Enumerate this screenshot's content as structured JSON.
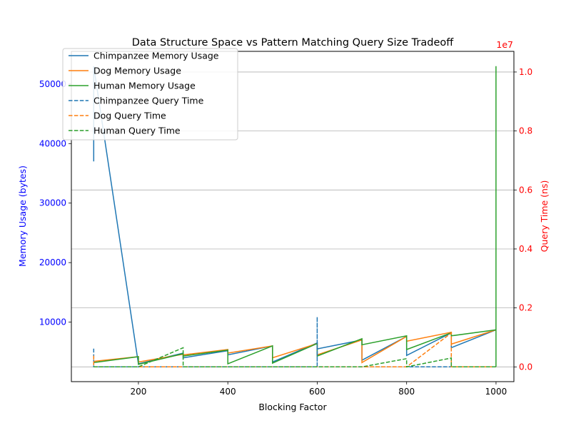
{
  "chart_data": {
    "type": "line",
    "title": "Data Structure Space vs Pattern Matching Query Size Tradeoff",
    "xlabel": "Blocking Factor",
    "ylabel_left": "Memory Usage (bytes)",
    "ylabel_right": "Query Time (ns)",
    "right_axis_offset_label": "1e7",
    "xlim": [
      50,
      1040
    ],
    "ylim_left": [
      0,
      55500
    ],
    "ylim_right": [
      -0.05,
      1.07
    ],
    "right_axis_scale": 10000000,
    "grid": "horizontal lines at right-axis ticks",
    "legend_position": "top-left",
    "x_ticks": [
      200,
      400,
      600,
      800,
      1000
    ],
    "x_tick_labels": [
      "200",
      "400",
      "600",
      "800",
      "1000"
    ],
    "y_left_ticks": [
      10000,
      20000,
      30000,
      40000,
      50000
    ],
    "y_left_tick_labels": [
      "10000",
      "20000",
      "30000",
      "40000",
      "50000"
    ],
    "y_right_ticks": [
      0.0,
      0.2,
      0.4,
      0.6,
      0.8,
      1.0
    ],
    "y_right_tick_labels": [
      "0.0",
      "0.2",
      "0.4",
      "0.6",
      "0.8",
      "1.0"
    ],
    "colors": {
      "chimpanzee": "#1f77b4",
      "dog": "#ff7f0e",
      "human": "#2ca02c",
      "left_axis": "#0000ff",
      "right_axis": "#ff0000"
    },
    "series": [
      {
        "name": "Chimpanzee Memory Usage",
        "axis": "left",
        "style": "solid",
        "color": "#1f77b4",
        "x": [
          100,
          100,
          100,
          200,
          200,
          300,
          300,
          400,
          400,
          500,
          500,
          600,
          600,
          700,
          700,
          800,
          800,
          900,
          900,
          1000
        ],
        "y": [
          37000,
          53000,
          53000,
          3000,
          3000,
          4800,
          4000,
          5200,
          4500,
          6000,
          3300,
          6500,
          5500,
          7000,
          3600,
          7600,
          4400,
          8200,
          5700,
          8700
        ]
      },
      {
        "name": "Dog Memory Usage",
        "axis": "left",
        "style": "solid",
        "color": "#ff7f0e",
        "x": [
          100,
          100,
          200,
          200,
          300,
          300,
          400,
          400,
          500,
          500,
          600,
          600,
          700,
          700,
          800,
          800,
          900,
          900,
          1000,
          1000
        ],
        "y": [
          3300,
          3400,
          4200,
          3300,
          4600,
          4500,
          5400,
          4800,
          6000,
          4000,
          6400,
          4500,
          7000,
          3200,
          7600,
          6800,
          8300,
          6300,
          8700,
          8700
        ]
      },
      {
        "name": "Human Memory Usage",
        "axis": "left",
        "style": "solid",
        "color": "#2ca02c",
        "x": [
          100,
          100,
          200,
          200,
          300,
          300,
          400,
          400,
          500,
          500,
          600,
          600,
          700,
          700,
          800,
          800,
          900,
          900,
          1000,
          1000
        ],
        "y": [
          3100,
          3200,
          4200,
          2900,
          4700,
          4300,
          5300,
          3000,
          6000,
          3100,
          6400,
          4300,
          7200,
          6200,
          7700,
          5400,
          8200,
          7700,
          8700,
          8700
        ]
      },
      {
        "name": "Chimpanzee Query Time",
        "axis": "right",
        "style": "dashed",
        "color": "#1f77b4",
        "x": [
          100,
          100,
          100,
          200,
          300,
          400,
          500,
          600,
          600,
          600,
          700,
          800,
          900,
          1000
        ],
        "y": [
          0.062,
          0.0,
          0.0,
          0.0,
          0.0,
          0.0,
          0.0,
          0.0,
          0.17,
          0.0,
          0.0,
          0.0,
          0.0,
          0.0
        ]
      },
      {
        "name": "Dog Query Time",
        "axis": "right",
        "style": "dashed",
        "color": "#ff7f0e",
        "x": [
          100,
          100,
          100,
          200,
          300,
          400,
          500,
          600,
          700,
          800,
          900,
          900,
          900,
          1000
        ],
        "y": [
          0.038,
          0.0,
          0.0,
          0.0,
          0.0,
          0.0,
          0.0,
          0.0,
          0.0,
          0.0,
          0.115,
          0.0,
          0.0,
          0.0
        ]
      },
      {
        "name": "Human Query Time",
        "axis": "right",
        "style": "dashed",
        "color": "#2ca02c",
        "x": [
          100,
          200,
          300,
          300,
          300,
          400,
          500,
          600,
          700,
          800,
          800,
          800,
          900,
          900,
          900,
          1000,
          1000,
          1000
        ],
        "y": [
          0.0,
          0.0,
          0.065,
          0.0,
          0.0,
          0.0,
          0.0,
          0.0,
          0.0,
          0.028,
          0.0,
          0.0,
          0.03,
          0.0,
          0.0,
          0.0,
          1.02,
          0.0
        ]
      }
    ]
  }
}
